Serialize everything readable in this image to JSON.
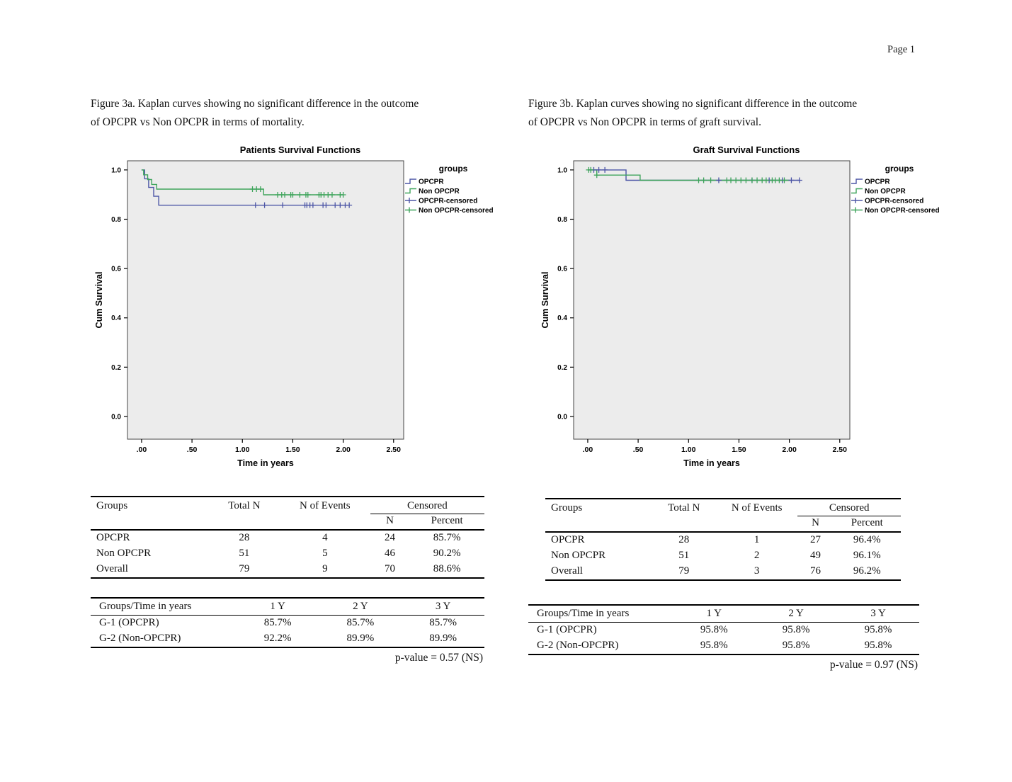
{
  "page": {
    "page_label": "Page 1"
  },
  "figures": [
    {
      "caption_line1": "Figure 3a. Kaplan curves showing no significant difference in the outcome",
      "caption_line2": "of OPCPR vs Non OPCPR in terms of mortality.",
      "summary_table": {
        "headers": {
          "groups": "Groups",
          "total_n": "Total N",
          "events": "N of Events",
          "censored": "Censored",
          "sub_n": "N",
          "sub_percent": "Percent"
        },
        "rows": [
          [
            "OPCPR",
            "28",
            "4",
            "24",
            "85.7%"
          ],
          [
            "Non OPCPR",
            "51",
            "5",
            "46",
            "90.2%"
          ],
          [
            "Overall",
            "79",
            "9",
            "70",
            "88.6%"
          ]
        ]
      },
      "survival_table": {
        "headers": [
          "Groups/Time in years",
          "1 Y",
          "2 Y",
          "3 Y"
        ],
        "rows": [
          [
            "G-1 (OPCPR)",
            "85.7%",
            "85.7%",
            "85.7%"
          ],
          [
            "G-2 (Non-OPCPR)",
            "92.2%",
            "89.9%",
            "89.9%"
          ]
        ],
        "p_value": "p-value = 0.57 (NS)"
      }
    },
    {
      "caption_line1": "Figure 3b. Kaplan curves showing no significant difference in the outcome",
      "caption_line2": "of OPCPR vs Non OPCPR in terms of graft survival.",
      "summary_table": {
        "headers": {
          "groups": "Groups",
          "total_n": "Total N",
          "events": "N of Events",
          "censored": "Censored",
          "sub_n": "N",
          "sub_percent": "Percent"
        },
        "rows": [
          [
            "OPCPR",
            "28",
            "1",
            "27",
            "96.4%"
          ],
          [
            "Non OPCPR",
            "51",
            "2",
            "49",
            "96.1%"
          ],
          [
            "Overall",
            "79",
            "3",
            "76",
            "96.2%"
          ]
        ]
      },
      "survival_table": {
        "headers": [
          "Groups/Time in years",
          "1 Y",
          "2 Y",
          "3 Y"
        ],
        "rows": [
          [
            "G-1 (OPCPR)",
            "95.8%",
            "95.8%",
            "95.8%"
          ],
          [
            "G-2 (Non-OPCPR)",
            "95.8%",
            "95.8%",
            "95.8%"
          ]
        ],
        "p_value": "p-value = 0.97 (NS)"
      }
    }
  ],
  "chart_data": [
    {
      "type": "line",
      "kind": "kaplan-meier-step",
      "title": "Patients Survival Functions",
      "xlabel": "Time in years",
      "ylabel": "Cum Survival",
      "xlim": [
        -0.14,
        2.6
      ],
      "ylim": [
        -0.092,
        1.037
      ],
      "grid": false,
      "plot_bg": "#ececec",
      "xticks": {
        "values": [
          0,
          0.5,
          1.0,
          1.5,
          2.0,
          2.5
        ],
        "labels": [
          ".00",
          ".50",
          "1.00",
          "1.50",
          "2.00",
          "2.50"
        ]
      },
      "yticks": {
        "values": [
          0.0,
          0.2,
          0.4,
          0.6,
          0.8,
          1.0
        ],
        "labels": [
          "0.0",
          "0.2",
          "0.4",
          "0.6",
          "0.8",
          "1.0"
        ]
      },
      "legend": {
        "title": "groups",
        "position": "right",
        "entries": [
          {
            "label": "OPCPR",
            "color": "#4d56a6",
            "symbol": "step"
          },
          {
            "label": "Non OPCPR",
            "color": "#3ea45b",
            "symbol": "step"
          },
          {
            "label": "OPCPR-censored",
            "color": "#4d56a6",
            "symbol": "plus"
          },
          {
            "label": "Non OPCPR-censored",
            "color": "#3ea45b",
            "symbol": "plus"
          }
        ]
      },
      "series": [
        {
          "name": "OPCPR",
          "color": "#4d56a6",
          "steps": [
            [
              0,
              1.0
            ],
            [
              0.03,
              0.964
            ],
            [
              0.07,
              0.929
            ],
            [
              0.12,
              0.893
            ],
            [
              0.17,
              0.857
            ],
            [
              2.05,
              0.857
            ]
          ]
        },
        {
          "name": "Non OPCPR",
          "color": "#3ea45b",
          "steps": [
            [
              0,
              1.0
            ],
            [
              0.02,
              0.98
            ],
            [
              0.06,
              0.961
            ],
            [
              0.1,
              0.941
            ],
            [
              0.15,
              0.922
            ],
            [
              1.21,
              0.899
            ],
            [
              2.0,
              0.899
            ]
          ]
        }
      ],
      "censored": [
        {
          "name": "OPCPR-censored",
          "color": "#4d56a6",
          "points": [
            [
              1.13,
              0.857
            ],
            [
              1.22,
              0.857
            ],
            [
              1.4,
              0.857
            ],
            [
              1.62,
              0.857
            ],
            [
              1.64,
              0.857
            ],
            [
              1.67,
              0.857
            ],
            [
              1.7,
              0.857
            ],
            [
              1.8,
              0.857
            ],
            [
              1.83,
              0.857
            ],
            [
              1.92,
              0.857
            ],
            [
              1.97,
              0.857
            ],
            [
              2.02,
              0.857
            ],
            [
              2.06,
              0.857
            ]
          ]
        },
        {
          "name": "Non OPCPR-censored",
          "color": "#3ea45b",
          "points": [
            [
              1.1,
              0.922
            ],
            [
              1.14,
              0.922
            ],
            [
              1.18,
              0.922
            ],
            [
              1.35,
              0.899
            ],
            [
              1.39,
              0.899
            ],
            [
              1.42,
              0.899
            ],
            [
              1.48,
              0.899
            ],
            [
              1.5,
              0.899
            ],
            [
              1.57,
              0.899
            ],
            [
              1.63,
              0.899
            ],
            [
              1.65,
              0.899
            ],
            [
              1.76,
              0.899
            ],
            [
              1.78,
              0.899
            ],
            [
              1.81,
              0.899
            ],
            [
              1.85,
              0.899
            ],
            [
              1.89,
              0.899
            ],
            [
              1.97,
              0.899
            ],
            [
              2.0,
              0.899
            ]
          ]
        }
      ]
    },
    {
      "type": "line",
      "kind": "kaplan-meier-step",
      "title": "Graft Survival Functions",
      "xlabel": "Time in years",
      "ylabel": "Cum Survival",
      "xlim": [
        -0.14,
        2.6
      ],
      "ylim": [
        -0.092,
        1.037
      ],
      "grid": false,
      "plot_bg": "#ececec",
      "xticks": {
        "values": [
          0,
          0.5,
          1.0,
          1.5,
          2.0,
          2.5
        ],
        "labels": [
          ".00",
          ".50",
          "1.00",
          "1.50",
          "2.00",
          "2.50"
        ]
      },
      "yticks": {
        "values": [
          0.0,
          0.2,
          0.4,
          0.6,
          0.8,
          1.0
        ],
        "labels": [
          "0.0",
          "0.2",
          "0.4",
          "0.6",
          "0.8",
          "1.0"
        ]
      },
      "legend": {
        "title": "groups",
        "position": "right",
        "entries": [
          {
            "label": "OPCPR",
            "color": "#4d56a6",
            "symbol": "step"
          },
          {
            "label": "Non OPCPR",
            "color": "#3ea45b",
            "symbol": "step"
          },
          {
            "label": "OPCPR-censored",
            "color": "#4d56a6",
            "symbol": "plus"
          },
          {
            "label": "Non OPCPR-censored",
            "color": "#3ea45b",
            "symbol": "plus"
          }
        ]
      },
      "series": [
        {
          "name": "OPCPR",
          "color": "#4d56a6",
          "steps": [
            [
              0,
              1.0
            ],
            [
              0.38,
              0.958
            ],
            [
              2.1,
              0.958
            ]
          ]
        },
        {
          "name": "Non OPCPR",
          "color": "#3ea45b",
          "steps": [
            [
              0,
              1.0
            ],
            [
              0.09,
              0.979
            ],
            [
              0.52,
              0.958
            ],
            [
              2.0,
              0.958
            ]
          ]
        }
      ],
      "censored": [
        {
          "name": "OPCPR-censored",
          "color": "#4d56a6",
          "points": [
            [
              0.06,
              1.0
            ],
            [
              0.11,
              1.0
            ],
            [
              0.17,
              1.0
            ],
            [
              1.3,
              0.958
            ],
            [
              1.63,
              0.958
            ],
            [
              1.8,
              0.958
            ],
            [
              1.93,
              0.958
            ],
            [
              2.02,
              0.958
            ],
            [
              2.1,
              0.958
            ]
          ]
        },
        {
          "name": "Non OPCPR-censored",
          "color": "#3ea45b",
          "points": [
            [
              0.01,
              1.0
            ],
            [
              0.03,
              1.0
            ],
            [
              0.09,
              0.979
            ],
            [
              1.1,
              0.958
            ],
            [
              1.15,
              0.958
            ],
            [
              1.22,
              0.958
            ],
            [
              1.38,
              0.958
            ],
            [
              1.42,
              0.958
            ],
            [
              1.47,
              0.958
            ],
            [
              1.52,
              0.958
            ],
            [
              1.57,
              0.958
            ],
            [
              1.63,
              0.958
            ],
            [
              1.68,
              0.958
            ],
            [
              1.73,
              0.958
            ],
            [
              1.77,
              0.958
            ],
            [
              1.83,
              0.958
            ],
            [
              1.86,
              0.958
            ],
            [
              1.9,
              0.958
            ],
            [
              1.95,
              0.958
            ]
          ]
        }
      ]
    }
  ]
}
